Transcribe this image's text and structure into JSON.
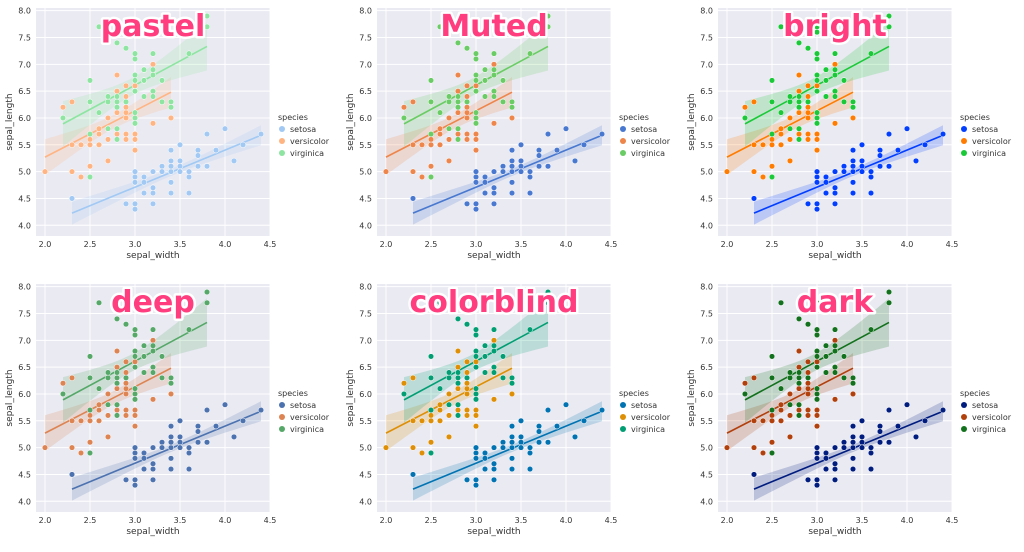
{
  "chart_data": {
    "type": "scatter",
    "xlabel": "sepal_width",
    "ylabel": "sepal_length",
    "xlim": [
      1.9,
      4.5
    ],
    "ylim": [
      3.8,
      8.05
    ],
    "xticks": [
      "2.0",
      "2.5",
      "3.0",
      "3.5",
      "4.0",
      "4.5"
    ],
    "yticks": [
      "4.0",
      "4.5",
      "5.0",
      "5.5",
      "6.0",
      "6.5",
      "7.0",
      "7.5",
      "8.0"
    ],
    "legend_title": "species",
    "legend_position": "center-right",
    "grid": true,
    "series_names": [
      "setosa",
      "versicolor",
      "virginica"
    ],
    "series_points": {
      "setosa": [
        [
          3.5,
          5.1
        ],
        [
          3.0,
          4.9
        ],
        [
          3.2,
          4.7
        ],
        [
          3.1,
          4.6
        ],
        [
          3.6,
          5.0
        ],
        [
          3.9,
          5.4
        ],
        [
          3.4,
          4.6
        ],
        [
          3.4,
          5.0
        ],
        [
          2.9,
          4.4
        ],
        [
          3.1,
          4.9
        ],
        [
          3.7,
          5.4
        ],
        [
          3.4,
          4.8
        ],
        [
          3.0,
          4.8
        ],
        [
          3.0,
          4.3
        ],
        [
          4.0,
          5.8
        ],
        [
          4.4,
          5.7
        ],
        [
          3.9,
          5.4
        ],
        [
          3.5,
          5.1
        ],
        [
          3.8,
          5.7
        ],
        [
          3.8,
          5.1
        ],
        [
          3.4,
          5.4
        ],
        [
          3.7,
          5.1
        ],
        [
          3.6,
          4.6
        ],
        [
          3.3,
          5.1
        ],
        [
          3.4,
          4.8
        ],
        [
          3.0,
          5.0
        ],
        [
          3.4,
          5.0
        ],
        [
          3.5,
          5.2
        ],
        [
          3.4,
          5.2
        ],
        [
          3.2,
          4.7
        ],
        [
          3.1,
          4.8
        ],
        [
          3.4,
          5.4
        ],
        [
          4.1,
          5.2
        ],
        [
          4.2,
          5.5
        ],
        [
          3.1,
          4.9
        ],
        [
          3.2,
          5.0
        ],
        [
          3.5,
          5.5
        ],
        [
          3.6,
          4.9
        ],
        [
          3.0,
          4.4
        ],
        [
          3.4,
          5.1
        ],
        [
          3.5,
          5.0
        ],
        [
          2.3,
          4.5
        ],
        [
          3.2,
          4.4
        ],
        [
          3.5,
          5.0
        ],
        [
          3.8,
          5.1
        ],
        [
          3.0,
          4.8
        ],
        [
          3.8,
          5.1
        ],
        [
          3.2,
          4.6
        ],
        [
          3.7,
          5.3
        ],
        [
          3.3,
          5.0
        ]
      ],
      "versicolor": [
        [
          3.2,
          7.0
        ],
        [
          3.2,
          6.4
        ],
        [
          3.1,
          6.9
        ],
        [
          2.3,
          5.5
        ],
        [
          2.8,
          6.5
        ],
        [
          2.8,
          5.7
        ],
        [
          3.3,
          6.3
        ],
        [
          2.4,
          4.9
        ],
        [
          2.9,
          6.6
        ],
        [
          2.7,
          5.2
        ],
        [
          2.0,
          5.0
        ],
        [
          3.0,
          5.9
        ],
        [
          2.2,
          6.0
        ],
        [
          2.9,
          6.1
        ],
        [
          2.9,
          5.6
        ],
        [
          3.1,
          6.7
        ],
        [
          3.0,
          5.6
        ],
        [
          2.7,
          5.8
        ],
        [
          2.2,
          6.2
        ],
        [
          2.5,
          5.6
        ],
        [
          3.2,
          5.9
        ],
        [
          2.8,
          6.1
        ],
        [
          2.5,
          6.3
        ],
        [
          2.8,
          6.1
        ],
        [
          2.9,
          6.4
        ],
        [
          3.0,
          6.6
        ],
        [
          2.8,
          6.8
        ],
        [
          3.0,
          6.7
        ],
        [
          2.9,
          6.0
        ],
        [
          2.6,
          5.7
        ],
        [
          2.4,
          5.5
        ],
        [
          2.4,
          5.5
        ],
        [
          2.7,
          5.8
        ],
        [
          2.7,
          6.0
        ],
        [
          3.0,
          5.4
        ],
        [
          3.4,
          6.0
        ],
        [
          3.1,
          6.7
        ],
        [
          2.3,
          6.3
        ],
        [
          3.0,
          5.6
        ],
        [
          2.5,
          5.5
        ],
        [
          2.6,
          5.5
        ],
        [
          3.0,
          6.1
        ],
        [
          2.6,
          5.8
        ],
        [
          2.3,
          5.0
        ],
        [
          2.7,
          5.6
        ],
        [
          3.0,
          5.7
        ],
        [
          2.9,
          5.7
        ],
        [
          2.9,
          6.2
        ],
        [
          2.5,
          5.1
        ],
        [
          2.8,
          5.7
        ]
      ],
      "virginica": [
        [
          3.3,
          6.3
        ],
        [
          2.7,
          5.8
        ],
        [
          3.0,
          7.1
        ],
        [
          2.9,
          6.3
        ],
        [
          3.0,
          6.5
        ],
        [
          3.0,
          7.6
        ],
        [
          2.5,
          4.9
        ],
        [
          2.9,
          7.3
        ],
        [
          2.5,
          6.7
        ],
        [
          3.6,
          7.2
        ],
        [
          3.2,
          6.5
        ],
        [
          2.7,
          6.4
        ],
        [
          3.0,
          6.8
        ],
        [
          2.5,
          5.7
        ],
        [
          2.8,
          5.8
        ],
        [
          3.2,
          6.4
        ],
        [
          3.0,
          6.5
        ],
        [
          3.8,
          7.7
        ],
        [
          2.6,
          7.7
        ],
        [
          2.2,
          6.0
        ],
        [
          3.2,
          6.9
        ],
        [
          2.8,
          5.6
        ],
        [
          2.8,
          7.7
        ],
        [
          2.7,
          6.3
        ],
        [
          3.3,
          6.7
        ],
        [
          3.2,
          7.2
        ],
        [
          2.8,
          6.2
        ],
        [
          3.0,
          6.1
        ],
        [
          2.8,
          6.4
        ],
        [
          3.0,
          7.2
        ],
        [
          2.8,
          7.4
        ],
        [
          3.8,
          7.9
        ],
        [
          2.8,
          6.4
        ],
        [
          2.8,
          6.3
        ],
        [
          2.6,
          6.1
        ],
        [
          3.0,
          7.7
        ],
        [
          3.4,
          6.3
        ],
        [
          3.1,
          6.4
        ],
        [
          3.0,
          6.0
        ],
        [
          3.1,
          6.9
        ],
        [
          3.1,
          6.7
        ],
        [
          3.1,
          6.9
        ],
        [
          2.7,
          5.8
        ],
        [
          3.2,
          6.8
        ],
        [
          3.3,
          6.7
        ],
        [
          3.0,
          6.7
        ],
        [
          2.5,
          6.3
        ],
        [
          3.0,
          6.5
        ],
        [
          3.4,
          6.2
        ],
        [
          3.0,
          5.9
        ]
      ]
    },
    "panels": [
      {
        "title": "pastel",
        "colors": {
          "setosa": "#a1c9f4",
          "versicolor": "#ffb482",
          "virginica": "#8de5a1"
        }
      },
      {
        "title": "Muted",
        "colors": {
          "setosa": "#4878d0",
          "versicolor": "#ee854a",
          "virginica": "#6acc64"
        }
      },
      {
        "title": "bright",
        "colors": {
          "setosa": "#023eff",
          "versicolor": "#ff7c00",
          "virginica": "#1ac938"
        }
      },
      {
        "title": "deep",
        "colors": {
          "setosa": "#4c72b0",
          "versicolor": "#dd8452",
          "virginica": "#55a868"
        }
      },
      {
        "title": "colorblind",
        "colors": {
          "setosa": "#0173b2",
          "versicolor": "#de8f05",
          "virginica": "#029e73"
        }
      },
      {
        "title": "dark",
        "colors": {
          "setosa": "#001c7f",
          "versicolor": "#b1400d",
          "virginica": "#12711c"
        }
      }
    ]
  }
}
